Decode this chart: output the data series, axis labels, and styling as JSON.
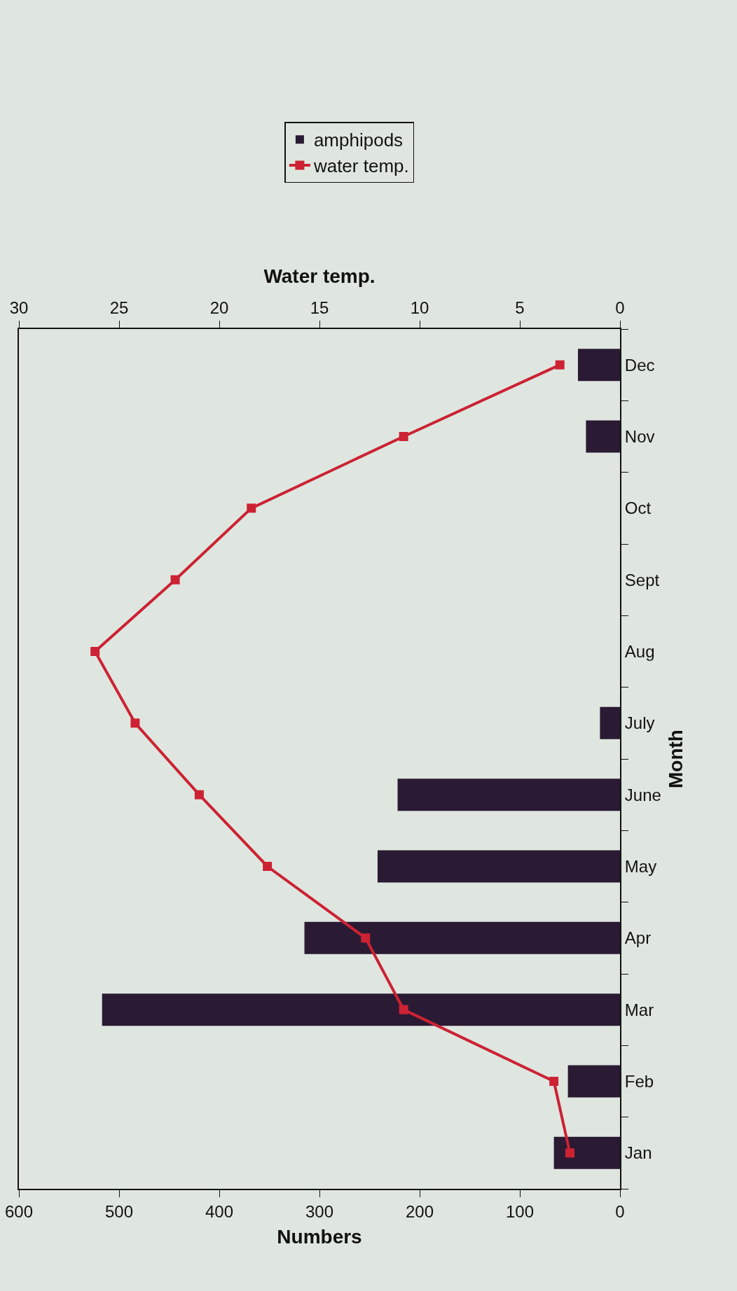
{
  "chart_data": {
    "type": "bar",
    "orientation": "horizontal",
    "xlabel": "Numbers",
    "x2label": "Water temp.",
    "ylabel": "Month",
    "categories": [
      "Dec",
      "Nov",
      "Oct",
      "Sept",
      "Aug",
      "July",
      "June",
      "May",
      "Apr",
      "Mar",
      "Feb",
      "Jan"
    ],
    "series": [
      {
        "name": "amphipods",
        "color": "#2a1a33",
        "values": [
          42,
          34,
          0,
          0,
          0,
          20,
          222,
          242,
          315,
          517,
          52,
          66
        ]
      },
      {
        "name": "water temp.",
        "type": "line",
        "axis": "x2",
        "color": "#cc2233",
        "marker": "square",
        "line_style": "solid",
        "values": [
          3.0,
          10.8,
          18.4,
          22.2,
          26.2,
          24.2,
          21.0,
          17.6,
          12.7,
          10.8,
          3.3,
          2.5
        ]
      }
    ],
    "xlim": [
      600,
      0
    ],
    "xticks": [
      0,
      100,
      200,
      300,
      400,
      500,
      600
    ],
    "x2lim": [
      30,
      0
    ],
    "x2ticks": [
      0,
      5,
      10,
      15,
      20,
      25,
      30
    ],
    "grid": false,
    "legend": "top"
  }
}
